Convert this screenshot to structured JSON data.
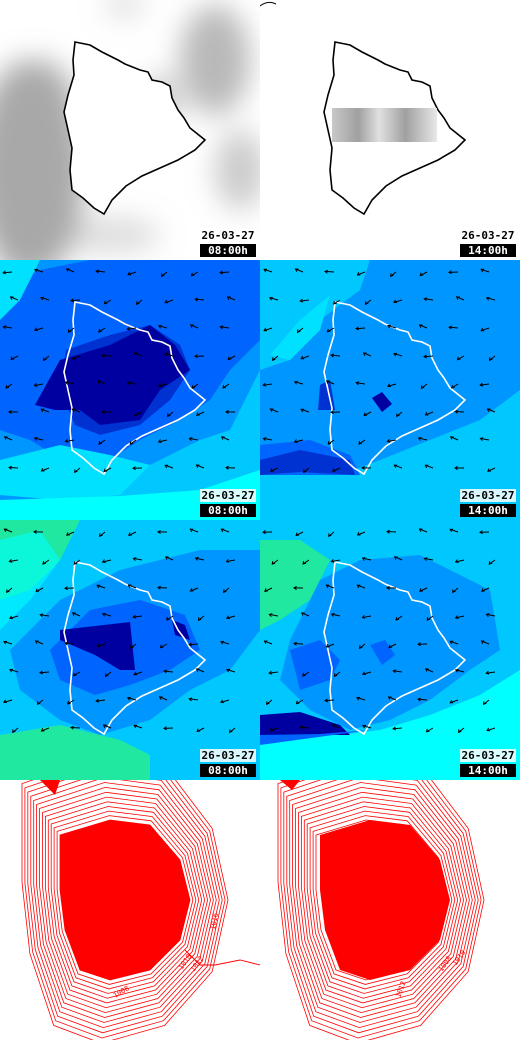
{
  "rows": [
    {
      "name": "cloud",
      "panels": [
        {
          "date": "26-03-27",
          "time": "08:00h"
        },
        {
          "date": "26-03-27",
          "time": "14:00h"
        }
      ]
    },
    {
      "name": "wind-1",
      "panels": [
        {
          "date": "26-03-27",
          "time": "08:00h"
        },
        {
          "date": "26-03-27",
          "time": "14:00h"
        }
      ]
    },
    {
      "name": "wind-2",
      "panels": [
        {
          "date": "26-03-27",
          "time": "08:00h"
        },
        {
          "date": "26-03-27",
          "time": "14:00h"
        }
      ]
    },
    {
      "name": "pressure",
      "panels": [
        {
          "isobar_labels": [
            "1016",
            "1010",
            "1012",
            "1008"
          ]
        },
        {
          "isobar_labels": [
            "1008",
            "1010",
            "1012"
          ]
        }
      ]
    }
  ],
  "colors": {
    "coast_dark": "#000000",
    "coast_light": "#ffffff",
    "cloud_gray": "#a8a8a8",
    "wind_arrow": "#000000",
    "isobar": "#ff0000",
    "blue_levels": [
      "#00ffff",
      "#00c8ff",
      "#0096ff",
      "#0064ff",
      "#0032d2",
      "#0000a0"
    ],
    "green_level": "#20e8a0"
  }
}
